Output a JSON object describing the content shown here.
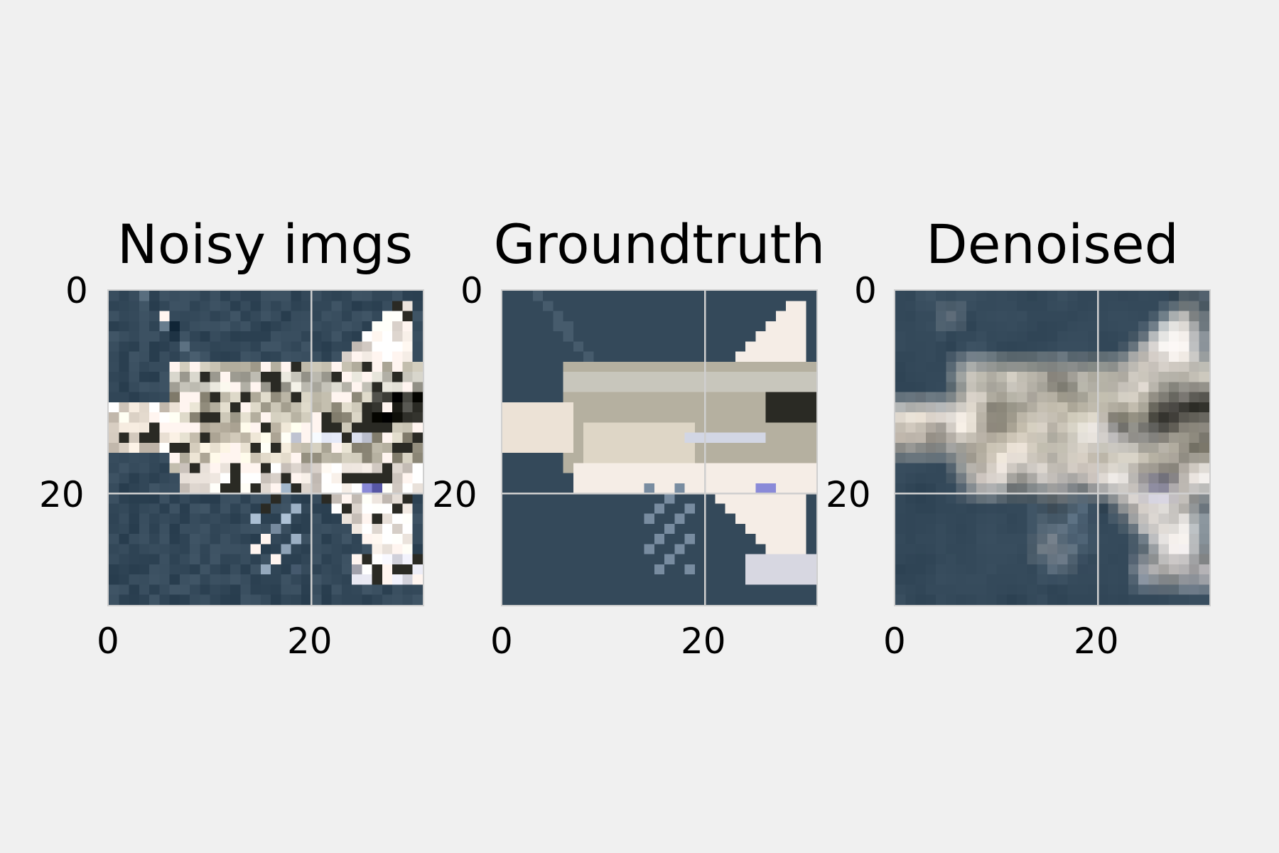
{
  "figure": {
    "panels": [
      {
        "id": "noisy",
        "title": "Noisy imgs",
        "noise": "heavy"
      },
      {
        "id": "groundtruth",
        "title": "Groundtruth",
        "noise": "none"
      },
      {
        "id": "denoised",
        "title": "Denoised",
        "noise": "blur"
      }
    ],
    "image_size": [
      31,
      31
    ],
    "x_ticks": [
      "0",
      "20"
    ],
    "y_ticks": [
      "0",
      "20"
    ],
    "grid": true,
    "colors": {
      "background": "#f0f0f0",
      "water": "#34495a",
      "grid": "#cfcfcf",
      "plane_light": "#f5ede6",
      "plane_mid": "#b5b0a0",
      "plane_dark": "#2a2a24",
      "marking": "#8a8ad8"
    }
  }
}
